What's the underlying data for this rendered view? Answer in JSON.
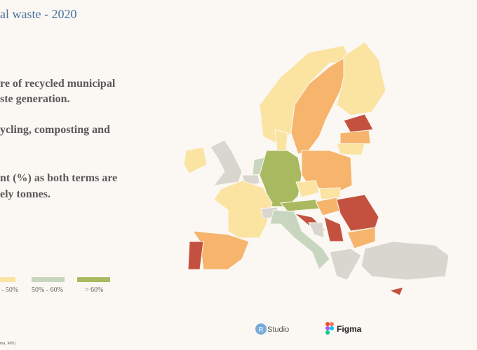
{
  "header": {
    "title": "al waste - 2020"
  },
  "description": [
    "re of recycled municipal",
    "ste generation.",
    "ycling, composting and",
    "nt (%) as both terms are",
    "ely tonnes."
  ],
  "legend": [
    "- 50%",
    "50% - 60%",
    "> 60%"
  ],
  "logos": {
    "rstudio_mark": "R",
    "rstudio": "Studio",
    "figma": "Figma"
  },
  "credit": "ma, MN)"
}
